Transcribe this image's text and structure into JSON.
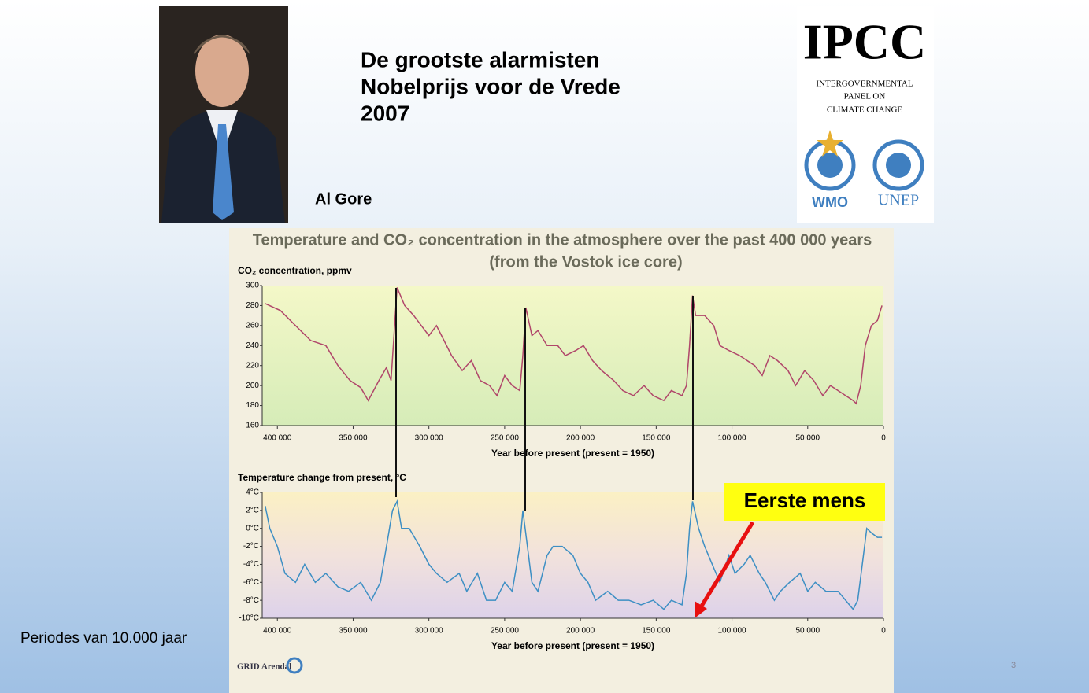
{
  "slide": {
    "title": [
      "De grootste alarmisten",
      "Nobelprijs voor de Vrede",
      "2007"
    ],
    "photo_caption": "Al Gore",
    "logo": {
      "name": "IPCC",
      "full": [
        "INTERGOVERNMENTAL",
        "PANEL ON",
        "CLIMATE CHANGE"
      ],
      "left": "WMO",
      "right": "UNEP"
    },
    "note": "Periodes van 10.000 jaar",
    "credit": "GRID Arendal",
    "page_number": 3
  },
  "chart_data": [
    {
      "type": "line",
      "title": "Temperature and CO₂ concentration in the atmosphere over the past 400 000 years",
      "subtitle": "(from the Vostok ice core)",
      "ylabel": "CO₂ concentration, ppmv",
      "xlabel": "Year before present (present = 1950)",
      "color": "#b0466a",
      "x": [
        408000,
        398000,
        388000,
        378000,
        368000,
        360000,
        352000,
        345000,
        340000,
        333000,
        328000,
        325000,
        321000,
        316000,
        310000,
        305000,
        300000,
        295000,
        290000,
        285000,
        278000,
        272000,
        266000,
        260000,
        255000,
        250000,
        245000,
        240000,
        238000,
        236000,
        232000,
        228000,
        222000,
        215000,
        210000,
        203000,
        198000,
        192000,
        186000,
        178000,
        172000,
        165000,
        158000,
        152000,
        145000,
        140000,
        133000,
        130000,
        128000,
        126000,
        124000,
        118000,
        112000,
        108000,
        102000,
        95000,
        90000,
        85000,
        80000,
        75000,
        70000,
        63000,
        58000,
        52000,
        46000,
        40000,
        35000,
        30000,
        25000,
        20000,
        18000,
        15000,
        12000,
        8000,
        4000,
        1000
      ],
      "values": [
        282,
        275,
        260,
        245,
        240,
        220,
        205,
        198,
        185,
        205,
        218,
        205,
        298,
        280,
        270,
        260,
        250,
        260,
        245,
        230,
        215,
        225,
        205,
        200,
        190,
        210,
        200,
        195,
        230,
        278,
        250,
        255,
        240,
        240,
        230,
        235,
        240,
        225,
        215,
        205,
        195,
        190,
        200,
        190,
        185,
        195,
        190,
        200,
        240,
        290,
        270,
        270,
        260,
        240,
        235,
        230,
        225,
        220,
        210,
        230,
        225,
        215,
        200,
        215,
        205,
        190,
        200,
        195,
        190,
        185,
        182,
        200,
        240,
        260,
        265,
        280
      ],
      "xlim": [
        410000,
        0
      ],
      "ylim": [
        160,
        300
      ],
      "xticks": [
        {
          "value": 400000,
          "label": "400 000"
        },
        {
          "value": 350000,
          "label": "350 000"
        },
        {
          "value": 300000,
          "label": "300 000"
        },
        {
          "value": 250000,
          "label": "250 000"
        },
        {
          "value": 200000,
          "label": "200 000"
        },
        {
          "value": 150000,
          "label": "150 000"
        },
        {
          "value": 100000,
          "label": "100 000"
        },
        {
          "value": 50000,
          "label": "50 000"
        },
        0
      ],
      "yticks": [
        160,
        180,
        200,
        220,
        240,
        260,
        280,
        300
      ]
    },
    {
      "type": "line",
      "ylabel": "Temperature change from present, °C",
      "xlabel": "Year before present (present = 1950)",
      "color": "#3d8fc4",
      "annotation": "Eerste mens",
      "x": [
        408000,
        405000,
        400000,
        395000,
        388000,
        382000,
        375000,
        368000,
        360000,
        353000,
        345000,
        338000,
        332000,
        328000,
        324000,
        321000,
        318000,
        313000,
        306000,
        300000,
        295000,
        288000,
        280000,
        275000,
        268000,
        262000,
        256000,
        250000,
        245000,
        240000,
        238000,
        235000,
        232000,
        228000,
        222000,
        218000,
        212000,
        205000,
        200000,
        195000,
        190000,
        182000,
        175000,
        168000,
        160000,
        152000,
        145000,
        140000,
        133000,
        130000,
        128000,
        126000,
        122000,
        118000,
        113000,
        108000,
        102000,
        98000,
        92000,
        88000,
        82000,
        78000,
        72000,
        68000,
        62000,
        55000,
        50000,
        45000,
        38000,
        30000,
        25000,
        20000,
        17000,
        14000,
        11000,
        8000,
        4000,
        1000
      ],
      "values": [
        2.5,
        0,
        -2,
        -5,
        -6,
        -4,
        -6,
        -5,
        -6.5,
        -7,
        -6,
        -8,
        -6,
        -2,
        2,
        3,
        0,
        0,
        -2,
        -4,
        -5,
        -6,
        -5,
        -7,
        -5,
        -8,
        -8,
        -6,
        -7,
        -2,
        2,
        -2,
        -6,
        -7,
        -3,
        -2,
        -2,
        -3,
        -5,
        -6,
        -8,
        -7,
        -8,
        -8,
        -8.5,
        -8,
        -9,
        -8,
        -8.5,
        -5,
        0,
        3,
        0,
        -2,
        -4,
        -6,
        -3,
        -5,
        -4,
        -3,
        -5,
        -6,
        -8,
        -7,
        -6,
        -5,
        -7,
        -6,
        -7,
        -7,
        -8,
        -9,
        -8,
        -4,
        0,
        -0.5,
        -1,
        -1
      ],
      "xlim": [
        410000,
        0
      ],
      "ylim": [
        -10,
        4
      ],
      "xticks": [
        {
          "value": 400000,
          "label": "400 000"
        },
        {
          "value": 350000,
          "label": "350 000"
        },
        {
          "value": 300000,
          "label": "300 000"
        },
        {
          "value": 250000,
          "label": "250 000"
        },
        {
          "value": 200000,
          "label": "200 000"
        },
        {
          "value": 150000,
          "label": "150 000"
        },
        {
          "value": 100000,
          "label": "100 000"
        },
        {
          "value": 50000,
          "label": "50 000"
        },
        0
      ],
      "yticks": [
        {
          "value": -10,
          "label": "-10°C"
        },
        {
          "value": -8,
          "label": "-8°C"
        },
        {
          "value": -6,
          "label": "-6°C"
        },
        {
          "value": -4,
          "label": "-4°C"
        },
        {
          "value": -2,
          "label": "-2°C"
        },
        {
          "value": 0,
          "label": "0°C"
        },
        {
          "value": 2,
          "label": "2°C"
        },
        {
          "value": 4,
          "label": "4°C"
        }
      ]
    }
  ]
}
